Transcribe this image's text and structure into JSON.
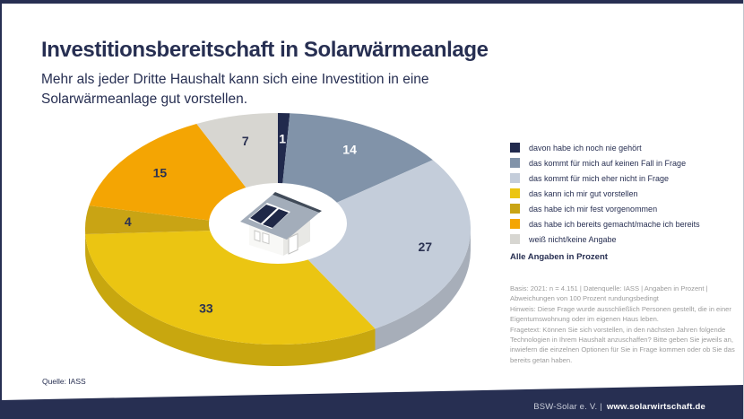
{
  "page": {
    "title": "Investitionsbereitschaft in Solarwärmeanlage",
    "subtitle": "Mehr als jeder Dritte Haushalt kann sich eine Investition in eine Solarwärmeanlage gut vorstellen.",
    "notes_heading": "Alle Angaben in Prozent",
    "notes": [
      "Basis: 2021: n = 4.151 | Datenquelle: IASS | Angaben in Prozent | Abweichungen von 100 Prozent rundungsbedingt",
      "Hinweis: Diese Frage wurde ausschließlich Personen gestellt, die in einer Eigentumswohnung oder im eigenen Haus leben.",
      "Fragetext: Können Sie sich vorstellen, in den nächsten Jahren folgende Technologien in Ihrem Haushalt anzuschaffen? Bitte geben Sie jeweils an, inwiefern die einzelnen Optionen für Sie in Frage kommen oder ob Sie das bereits getan haben."
    ],
    "source": "Quelle: IASS",
    "footer": {
      "org": "BSW-Solar e. V. |",
      "url": "www.solarwirtschaft.de"
    },
    "colors": {
      "brand_navy": "#272f52",
      "fine_print_gray": "#9c9c9c"
    },
    "center_icon": "house-with-solar-panels"
  },
  "chart_data": {
    "type": "pie",
    "title": "Investitionsbereitschaft in Solarwärmeanlage",
    "unit": "Prozent",
    "legend_position": "right",
    "start_angle_deg": 0,
    "slices": [
      {
        "label": "davon habe ich noch nie gehört",
        "value": 1,
        "color": "#212a4d",
        "label_color": "#ffffff"
      },
      {
        "label": "das kommt für mich auf keinen Fall in Frage",
        "value": 14,
        "color": "#8193a9",
        "label_color": "#ffffff"
      },
      {
        "label": "das kommt für mich eher nicht in Frage",
        "value": 27,
        "color": "#c4cdda",
        "label_color": "#2b3252"
      },
      {
        "label": "das kann ich mir gut vorstellen",
        "value": 33,
        "color": "#ebc512",
        "label_color": "#2b3252"
      },
      {
        "label": "das habe ich mir fest vorgenommen",
        "value": 4,
        "color": "#c9a414",
        "label_color": "#2b3252"
      },
      {
        "label": "das habe ich bereits gemacht/mache ich bereits",
        "value": 15,
        "color": "#f4a503",
        "label_color": "#2b3252"
      },
      {
        "label": "weiß nicht/keine Angabe",
        "value": 7,
        "color": "#d7d6d1",
        "label_color": "#2b3252"
      }
    ]
  }
}
